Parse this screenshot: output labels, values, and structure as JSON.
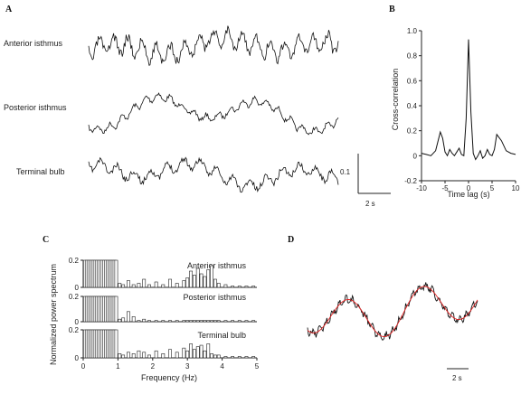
{
  "panels": {
    "A": {
      "letter": "A"
    },
    "B": {
      "letter": "B"
    },
    "C": {
      "letter": "C"
    },
    "D": {
      "letter": "D"
    }
  },
  "chart_data": [
    {
      "panel": "A",
      "type": "line",
      "series": [
        {
          "name": "Anterior isthmus"
        },
        {
          "name": "Posterior isthmus"
        },
        {
          "name": "Terminal bulb"
        }
      ],
      "scale_bar": {
        "y_label": "0.1",
        "x_label": "2 s"
      }
    },
    {
      "panel": "B",
      "type": "line",
      "title": "",
      "xlabel": "Time lag (s)",
      "ylabel": "Cross-correlation",
      "xlim": [
        -10,
        10
      ],
      "ylim": [
        -0.2,
        1.0
      ],
      "xticks": [
        -10,
        -5,
        0,
        5,
        10
      ],
      "yticks": [
        -0.2,
        0,
        0.2,
        0.4,
        0.6,
        0.8,
        1.0
      ],
      "ytick_labels": [
        "-0.2",
        "0",
        "0.2",
        "0.4",
        "0.6",
        "0.8",
        "1.0"
      ],
      "x": [
        -10,
        -9,
        -8,
        -7,
        -6,
        -5.5,
        -5,
        -4.5,
        -4,
        -3.5,
        -3,
        -2.5,
        -2,
        -1.5,
        -1,
        -0.5,
        0,
        0.5,
        1,
        1.5,
        2,
        2.5,
        3,
        3.5,
        4,
        4.5,
        5,
        5.5,
        6,
        7,
        8,
        9,
        10
      ],
      "y": [
        0.02,
        0.01,
        0.0,
        0.04,
        0.19,
        0.14,
        0.03,
        0.0,
        0.05,
        0.02,
        0.0,
        0.03,
        0.06,
        0.01,
        0.0,
        0.3,
        0.93,
        0.35,
        0.02,
        -0.03,
        0.0,
        0.04,
        -0.02,
        0.0,
        0.05,
        0.01,
        0.0,
        0.05,
        0.17,
        0.12,
        0.04,
        0.02,
        0.01
      ]
    },
    {
      "panel": "C",
      "type": "bar",
      "xlabel": "Frequency (Hz)",
      "ylabel": "Normalized power spectrum",
      "xlim": [
        0,
        5
      ],
      "ylim": [
        0,
        0.2
      ],
      "xticks": [
        0,
        1,
        2,
        3,
        4,
        5
      ],
      "yticks": [
        0,
        0.2
      ],
      "series": [
        {
          "name": "Anterior isthmus",
          "freq": [
            0.05,
            0.1,
            0.15,
            0.2,
            0.25,
            0.3,
            0.35,
            0.4,
            0.45,
            0.5,
            0.55,
            0.6,
            0.65,
            0.7,
            0.75,
            0.8,
            0.85,
            0.9,
            0.95,
            1.05,
            1.15,
            1.3,
            1.45,
            1.6,
            1.75,
            1.9,
            2.1,
            2.3,
            2.5,
            2.7,
            2.9,
            3.0,
            3.1,
            3.2,
            3.3,
            3.4,
            3.5,
            3.6,
            3.7,
            3.8,
            3.9,
            4.1,
            4.3,
            4.5,
            4.7,
            4.9
          ],
          "values": [
            0.2,
            0.2,
            0.2,
            0.2,
            0.2,
            0.2,
            0.2,
            0.2,
            0.2,
            0.2,
            0.2,
            0.2,
            0.2,
            0.2,
            0.2,
            0.2,
            0.2,
            0.2,
            0.2,
            0.03,
            0.02,
            0.05,
            0.02,
            0.03,
            0.06,
            0.02,
            0.04,
            0.02,
            0.06,
            0.03,
            0.05,
            0.07,
            0.12,
            0.09,
            0.14,
            0.1,
            0.08,
            0.13,
            0.16,
            0.06,
            0.03,
            0.02,
            0.01,
            0.01,
            0.01,
            0.01
          ]
        },
        {
          "name": "Posterior isthmus",
          "freq": [
            0.05,
            0.1,
            0.15,
            0.2,
            0.25,
            0.3,
            0.35,
            0.4,
            0.45,
            0.5,
            0.55,
            0.6,
            0.65,
            0.7,
            0.75,
            0.8,
            0.85,
            0.9,
            0.95,
            1.05,
            1.15,
            1.3,
            1.45,
            1.6,
            1.75,
            1.9,
            2.1,
            2.3,
            2.5,
            2.7,
            2.9,
            3.0,
            3.1,
            3.2,
            3.3,
            3.4,
            3.5,
            3.6,
            3.7,
            3.8,
            3.9,
            4.1,
            4.3,
            4.5,
            4.7,
            4.9
          ],
          "values": [
            0.2,
            0.2,
            0.2,
            0.2,
            0.2,
            0.2,
            0.2,
            0.2,
            0.2,
            0.2,
            0.2,
            0.2,
            0.2,
            0.2,
            0.2,
            0.2,
            0.2,
            0.2,
            0.2,
            0.02,
            0.03,
            0.08,
            0.04,
            0.01,
            0.02,
            0.01,
            0.01,
            0.01,
            0.01,
            0.01,
            0.01,
            0.01,
            0.01,
            0.01,
            0.01,
            0.01,
            0.01,
            0.01,
            0.01,
            0.01,
            0.01,
            0.01,
            0.01,
            0.01,
            0.01,
            0.01
          ]
        },
        {
          "name": "Terminal bulb",
          "freq": [
            0.05,
            0.1,
            0.15,
            0.2,
            0.25,
            0.3,
            0.35,
            0.4,
            0.45,
            0.5,
            0.55,
            0.6,
            0.65,
            0.7,
            0.75,
            0.8,
            0.85,
            0.9,
            0.95,
            1.05,
            1.15,
            1.3,
            1.45,
            1.6,
            1.75,
            1.9,
            2.1,
            2.3,
            2.5,
            2.7,
            2.9,
            3.0,
            3.1,
            3.2,
            3.3,
            3.4,
            3.5,
            3.6,
            3.7,
            3.8,
            3.9,
            4.1,
            4.3,
            4.5,
            4.7,
            4.9
          ],
          "values": [
            0.2,
            0.2,
            0.2,
            0.2,
            0.2,
            0.2,
            0.2,
            0.2,
            0.2,
            0.2,
            0.2,
            0.2,
            0.2,
            0.2,
            0.2,
            0.2,
            0.2,
            0.2,
            0.2,
            0.03,
            0.02,
            0.04,
            0.03,
            0.05,
            0.04,
            0.02,
            0.05,
            0.03,
            0.06,
            0.04,
            0.07,
            0.05,
            0.1,
            0.06,
            0.08,
            0.09,
            0.05,
            0.1,
            0.03,
            0.02,
            0.02,
            0.01,
            0.01,
            0.01,
            0.01,
            0.01
          ]
        }
      ]
    },
    {
      "panel": "D",
      "type": "line",
      "series": [
        {
          "color": "#111111"
        },
        {
          "color": "#e02020"
        }
      ],
      "scale_bar": {
        "x_label": "2 s"
      }
    }
  ]
}
